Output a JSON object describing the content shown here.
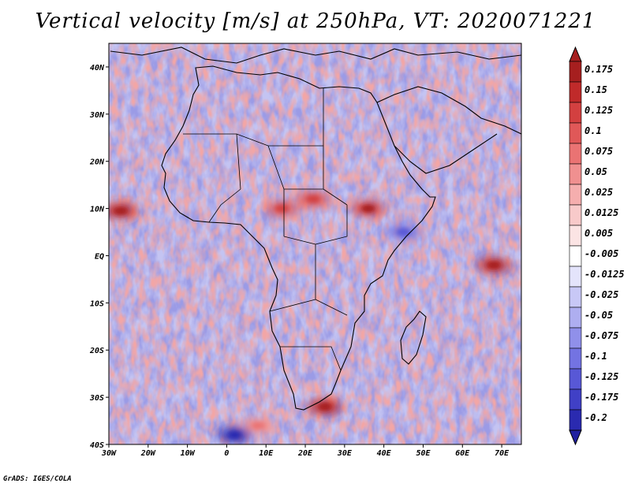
{
  "title": "Vertical velocity [m/s] at 250hPa, VT: 2020071221",
  "credit": "GrADS: IGES/COLA",
  "map": {
    "region": "Africa and surrounding oceans",
    "lon_range": [
      -30,
      75
    ],
    "lat_range": [
      -40,
      45
    ],
    "x_ticks": [
      {
        "value": -30,
        "label": "30W"
      },
      {
        "value": -20,
        "label": "20W"
      },
      {
        "value": -10,
        "label": "10W"
      },
      {
        "value": 0,
        "label": "0"
      },
      {
        "value": 10,
        "label": "10E"
      },
      {
        "value": 20,
        "label": "20E"
      },
      {
        "value": 30,
        "label": "30E"
      },
      {
        "value": 40,
        "label": "40E"
      },
      {
        "value": 50,
        "label": "50E"
      },
      {
        "value": 60,
        "label": "60E"
      },
      {
        "value": 70,
        "label": "70E"
      }
    ],
    "y_ticks": [
      {
        "value": 40,
        "label": "40N"
      },
      {
        "value": 30,
        "label": "30N"
      },
      {
        "value": 20,
        "label": "20N"
      },
      {
        "value": 10,
        "label": "10N"
      },
      {
        "value": 0,
        "label": "EQ"
      },
      {
        "value": -10,
        "label": "10S"
      },
      {
        "value": -20,
        "label": "20S"
      },
      {
        "value": -30,
        "label": "30S"
      },
      {
        "value": -40,
        "label": "40S"
      }
    ],
    "features": [
      {
        "name": "strong-ascent-west-atlantic",
        "lon": -27,
        "lat": 9.5,
        "value": 0.15
      },
      {
        "name": "ascent-ethiopian-highlands",
        "lon": 36,
        "lat": 10,
        "value": 0.125
      },
      {
        "name": "ascent-darfur",
        "lon": 22,
        "lat": 12,
        "value": 0.1
      },
      {
        "name": "ascent-lake-chad",
        "lon": 14,
        "lat": 10,
        "value": 0.1
      },
      {
        "name": "ascent-arabian-sea-south",
        "lon": 68,
        "lat": -2,
        "value": 0.15
      },
      {
        "name": "ascent-south-africa",
        "lon": 25,
        "lat": -32,
        "value": 0.15
      },
      {
        "name": "ascent-se-atlantic",
        "lon": 8,
        "lat": -36,
        "value": 0.05
      },
      {
        "name": "descent-south-ocean",
        "lon": 2,
        "lat": -38,
        "value": -0.2
      },
      {
        "name": "descent-indian-ocean",
        "lon": 45,
        "lat": 5,
        "value": -0.1
      }
    ]
  },
  "colorbar": {
    "levels": [
      {
        "label": "0.175",
        "color": "#a61f1f"
      },
      {
        "label": "0.15",
        "color": "#c02a2a"
      },
      {
        "label": "0.125",
        "color": "#d34040"
      },
      {
        "label": "0.1",
        "color": "#e05858"
      },
      {
        "label": "0.075",
        "color": "#ea7373"
      },
      {
        "label": "0.05",
        "color": "#f09090"
      },
      {
        "label": "0.025",
        "color": "#f5aeae"
      },
      {
        "label": "0.0125",
        "color": "#f8caca"
      },
      {
        "label": "0.005",
        "color": "#fbe4e4"
      },
      {
        "label": "-0.005",
        "color": "#ffffff"
      },
      {
        "label": "-0.0125",
        "color": "#e4e4fb"
      },
      {
        "label": "-0.025",
        "color": "#c8c8f6"
      },
      {
        "label": "-0.05",
        "color": "#aeaef0"
      },
      {
        "label": "-0.075",
        "color": "#9090ea"
      },
      {
        "label": "-0.1",
        "color": "#7373e2"
      },
      {
        "label": "-0.125",
        "color": "#5858d6"
      },
      {
        "label": "-0.175",
        "color": "#4040c6"
      },
      {
        "label": "-0.2",
        "color": "#2a2ab0"
      }
    ],
    "bottom_color": "#2020a0"
  }
}
